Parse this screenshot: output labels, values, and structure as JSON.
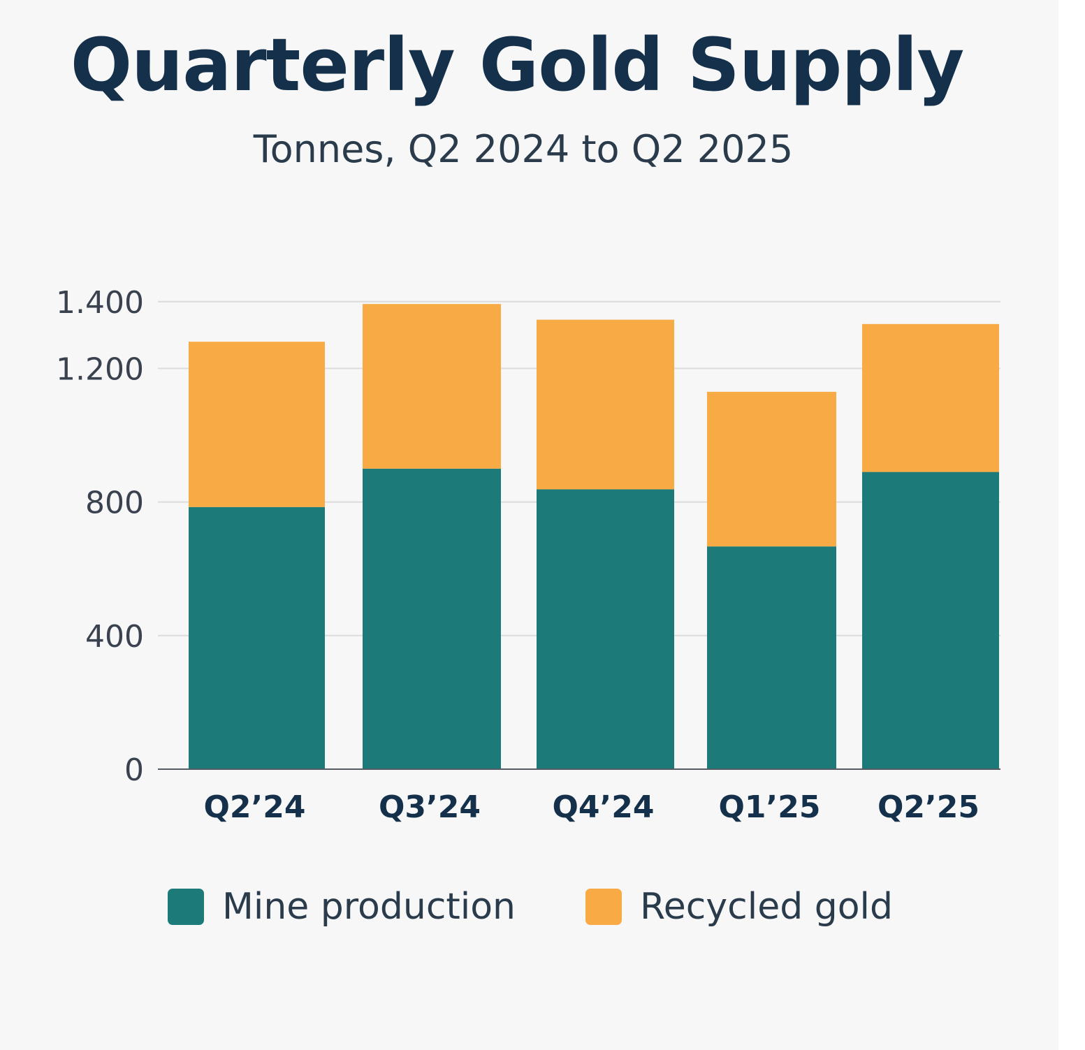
{
  "colors": {
    "background": "#f7f7f7",
    "mine": "#1c7a78",
    "recycled": "#f8ab45",
    "grid": "#dcdcdc",
    "axis": "#555b63",
    "title": "#14304a"
  },
  "chart_data": {
    "type": "bar",
    "stacked": true,
    "title": "Quarterly Gold Supply",
    "subtitle": "Tonnes, Q2 2024 to Q2 2025",
    "categories": [
      "Q2’24",
      "Q3’24",
      "Q4’24",
      "Q1’25",
      "Q2’25"
    ],
    "series": [
      {
        "name": "Mine production",
        "color": "#1c7a78",
        "values": [
          785,
          900,
          838,
          667,
          890
        ]
      },
      {
        "name": "Recycled gold",
        "color": "#f8ab45",
        "values": [
          495,
          493,
          508,
          463,
          443
        ]
      }
    ],
    "y_ticks": [
      {
        "value": 0,
        "label": "0"
      },
      {
        "value": 400,
        "label": "400"
      },
      {
        "value": 800,
        "label": "800"
      },
      {
        "value": 1200,
        "label": "1.200"
      },
      {
        "value": 1400,
        "label": "1.400"
      }
    ],
    "grid": true,
    "legend_position": "bottom"
  }
}
